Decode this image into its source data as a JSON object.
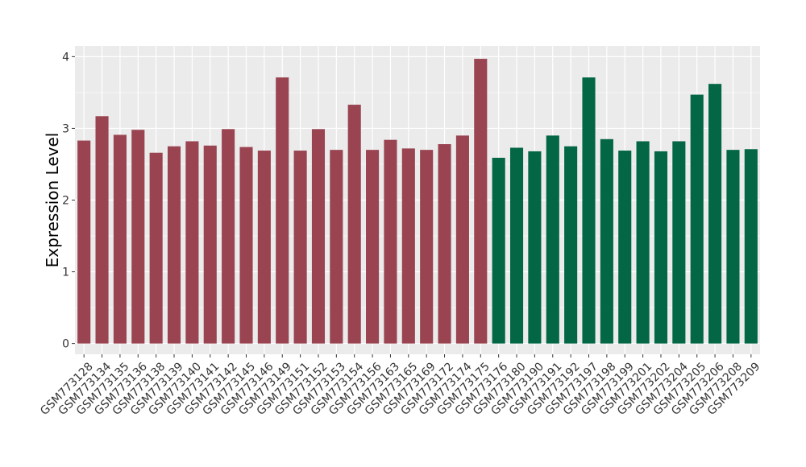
{
  "chart_data": {
    "type": "bar",
    "ylabel": "Expression Level",
    "xlabel": "",
    "ylim": [
      -0.15,
      4.15
    ],
    "yticks": [
      0,
      1,
      2,
      3,
      4
    ],
    "grid": true,
    "background_color": "#EBEBEB",
    "grid_color": "#FFFFFF",
    "group_colors": [
      "#9A4452",
      "#036645"
    ],
    "categories": [
      "GSM773128",
      "GSM773134",
      "GSM773135",
      "GSM773136",
      "GSM773138",
      "GSM773139",
      "GSM773140",
      "GSM773141",
      "GSM773142",
      "GSM773145",
      "GSM773146",
      "GSM773149",
      "GSM773151",
      "GSM773152",
      "GSM773153",
      "GSM773154",
      "GSM773156",
      "GSM773163",
      "GSM773165",
      "GSM773169",
      "GSM773172",
      "GSM773174",
      "GSM773175",
      "GSM773176",
      "GSM773180",
      "GSM773190",
      "GSM773191",
      "GSM773192",
      "GSM773197",
      "GSM773198",
      "GSM773199",
      "GSM773201",
      "GSM773202",
      "GSM773204",
      "GSM773205",
      "GSM773206",
      "GSM773208",
      "GSM773209"
    ],
    "values": [
      2.83,
      3.17,
      2.91,
      2.98,
      2.66,
      2.75,
      2.82,
      2.76,
      2.99,
      2.74,
      2.69,
      3.71,
      2.69,
      2.99,
      2.7,
      3.33,
      2.7,
      2.84,
      2.72,
      2.7,
      2.78,
      2.9,
      3.97,
      2.59,
      2.73,
      2.68,
      2.9,
      2.75,
      3.71,
      2.85,
      2.69,
      2.82,
      2.68,
      2.82,
      3.47,
      3.62,
      2.7,
      2.71
    ],
    "groups": [
      0,
      0,
      0,
      0,
      0,
      0,
      0,
      0,
      0,
      0,
      0,
      0,
      0,
      0,
      0,
      0,
      0,
      0,
      0,
      0,
      0,
      0,
      0,
      1,
      1,
      1,
      1,
      1,
      1,
      1,
      1,
      1,
      1,
      1,
      1,
      1,
      1,
      1
    ]
  }
}
